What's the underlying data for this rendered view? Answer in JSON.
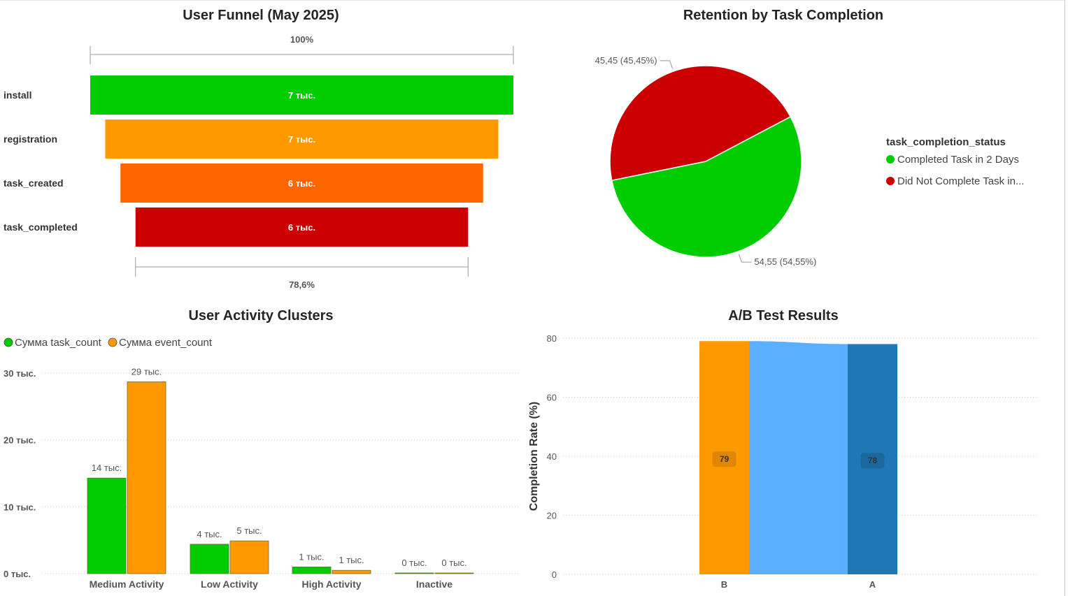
{
  "funnel": {
    "title": "User Funnel (May 2025)",
    "top_pct_label": "100%",
    "bottom_pct_label": "78,6%",
    "stages": [
      {
        "name": "install",
        "label": "7 тыс.",
        "fraction": 1.0,
        "color": "#00CC00"
      },
      {
        "name": "registration",
        "label": "7 тыс.",
        "fraction": 0.929,
        "color": "#FF9900"
      },
      {
        "name": "task_created",
        "label": "6 тыс.",
        "fraction": 0.857,
        "color": "#FF6600"
      },
      {
        "name": "task_completed",
        "label": "6 тыс.",
        "fraction": 0.786,
        "color": "#CC0000"
      }
    ]
  },
  "retention": {
    "title": "Retention by Task Completion",
    "legend_title": "task_completion_status",
    "slices": [
      {
        "name": "Completed Task in 2 Days",
        "value": 54.55,
        "label": "54,55 (54,55%)",
        "color": "#00CC00"
      },
      {
        "name": "Did Not Complete Task in...",
        "value": 45.45,
        "label": "45,45 (45,45%)",
        "color": "#CC0000"
      }
    ]
  },
  "clusters": {
    "title": "User Activity Clusters",
    "ymax": 30000,
    "yticks": [
      {
        "value": 0,
        "label": "0 тыс."
      },
      {
        "value": 10000,
        "label": "10 тыс."
      },
      {
        "value": 20000,
        "label": "20 тыс."
      },
      {
        "value": 30000,
        "label": "30 тыс."
      }
    ],
    "categories": [
      "Medium Activity",
      "Low Activity",
      "High Activity",
      "Inactive"
    ],
    "series": [
      {
        "name": "Сумма task_count",
        "color": "#00CC00",
        "values": [
          14300,
          4400,
          1000,
          0
        ],
        "labels": [
          "14 тыс.",
          "4 тыс.",
          "1 тыс.",
          "0 тыс."
        ]
      },
      {
        "name": "Сумма event_count",
        "color": "#FF9900",
        "values": [
          28700,
          4900,
          500,
          100
        ],
        "labels": [
          "29 тыс.",
          "5 тыс.",
          "1 тыс.",
          "0 тыс."
        ]
      }
    ]
  },
  "abtest": {
    "title": "A/B Test Results",
    "ylabel": "Completion Rate (%)",
    "ymax": 80,
    "yticks": [
      0,
      20,
      40,
      60,
      80
    ],
    "categories": [
      "B",
      "A"
    ],
    "values": [
      79,
      78
    ],
    "labels": [
      "79",
      "78"
    ],
    "colors": [
      "#FF9900",
      "#1F77B4"
    ],
    "ribbon_color": "#5BAFFF"
  },
  "chart_data": [
    {
      "type": "funnel",
      "title": "User Funnel (May 2025)",
      "categories": [
        "install",
        "registration",
        "task_created",
        "task_completed"
      ],
      "values": [
        7000,
        6500,
        6000,
        5500
      ]
    },
    {
      "type": "pie",
      "title": "Retention by Task Completion",
      "categories": [
        "Completed Task in 2 Days",
        "Did Not Complete Task in..."
      ],
      "values": [
        54.55,
        45.45
      ],
      "legend_title": "task_completion_status"
    },
    {
      "type": "bar",
      "title": "User Activity Clusters",
      "categories": [
        "Medium Activity",
        "Low Activity",
        "High Activity",
        "Inactive"
      ],
      "series": [
        {
          "name": "Сумма task_count",
          "values": [
            14300,
            4400,
            1000,
            0
          ]
        },
        {
          "name": "Сумма event_count",
          "values": [
            28700,
            4900,
            500,
            100
          ]
        }
      ],
      "ylim": [
        0,
        30000
      ],
      "legend": "top-left"
    },
    {
      "type": "bar",
      "title": "A/B Test Results",
      "categories": [
        "B",
        "A"
      ],
      "values": [
        79,
        78
      ],
      "ylabel": "Completion Rate (%)",
      "ylim": [
        0,
        80
      ]
    }
  ]
}
